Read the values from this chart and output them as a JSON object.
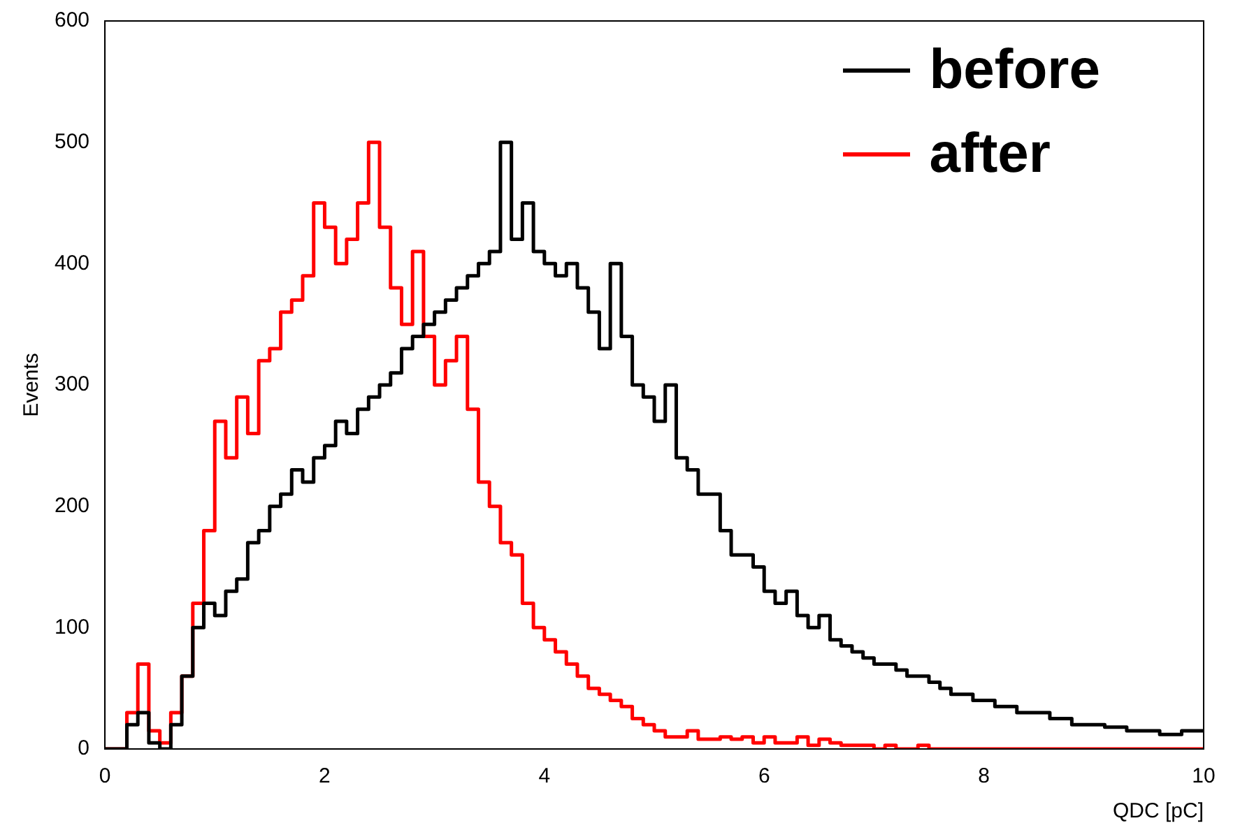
{
  "chart_data": {
    "type": "step",
    "xlabel": "QDC [pC]",
    "ylabel": "Events",
    "legend": "top right",
    "xlim": [
      0,
      10
    ],
    "ylim": [
      0,
      600
    ],
    "xticks": [
      0,
      2,
      4,
      6,
      8,
      10
    ],
    "yticks": [
      0,
      100,
      200,
      300,
      400,
      500,
      600
    ],
    "x": [
      0,
      0.1,
      0.2,
      0.3,
      0.4,
      0.5,
      0.6,
      0.7,
      0.8,
      0.9,
      1,
      1.1,
      1.2,
      1.3,
      1.4,
      1.5,
      1.6,
      1.7,
      1.8,
      1.9,
      2,
      2.1,
      2.2,
      2.3,
      2.4,
      2.5,
      2.6,
      2.7,
      2.8,
      2.9,
      3,
      3.1,
      3.2,
      3.3,
      3.4,
      3.5,
      3.6,
      3.7,
      3.8,
      3.9,
      4,
      4.1,
      4.2,
      4.3,
      4.4,
      4.5,
      4.6,
      4.7,
      4.8,
      4.9,
      5,
      5.1,
      5.2,
      5.3,
      5.4,
      5.5,
      5.6,
      5.7,
      5.8,
      5.9,
      6,
      6.1,
      6.2,
      6.3,
      6.4,
      6.5,
      6.6,
      6.7,
      6.8,
      6.9,
      7,
      7.1,
      7.2,
      7.3,
      7.4,
      7.5,
      7.6,
      7.7,
      7.8,
      7.9,
      8,
      8.1,
      8.2,
      8.3,
      8.4,
      8.5,
      8.6,
      8.7,
      8.8,
      8.9,
      9,
      9.1,
      9.2,
      9.3,
      9.4,
      9.5,
      9.6,
      9.7,
      9.8,
      9.9,
      10
    ],
    "series": [
      {
        "name": "before",
        "color": "#000000",
        "values": [
          0,
          0,
          0,
          20,
          30,
          5,
          0,
          20,
          60,
          100,
          120,
          110,
          130,
          140,
          170,
          180,
          200,
          210,
          230,
          220,
          240,
          250,
          270,
          260,
          280,
          290,
          300,
          310,
          330,
          340,
          350,
          360,
          370,
          380,
          390,
          400,
          410,
          500,
          420,
          450,
          410,
          400,
          390,
          400,
          380,
          360,
          330,
          400,
          340,
          300,
          290,
          270,
          300,
          240,
          230,
          210,
          210,
          180,
          160,
          160,
          150,
          130,
          120,
          130,
          110,
          100,
          110,
          90,
          85,
          80,
          75,
          70,
          70,
          65,
          60,
          60,
          55,
          50,
          45,
          45,
          40,
          40,
          35,
          35,
          30,
          30,
          30,
          25,
          25,
          20,
          20,
          20,
          18,
          18,
          15,
          15,
          15,
          12,
          12,
          15,
          15
        ]
      },
      {
        "name": "after",
        "color": "#ff0000",
        "values": [
          0,
          0,
          0,
          30,
          70,
          15,
          5,
          30,
          60,
          120,
          180,
          270,
          240,
          290,
          260,
          320,
          330,
          360,
          370,
          390,
          450,
          430,
          400,
          420,
          450,
          500,
          430,
          380,
          350,
          410,
          340,
          300,
          320,
          340,
          280,
          220,
          200,
          170,
          160,
          120,
          100,
          90,
          80,
          70,
          60,
          50,
          45,
          40,
          35,
          25,
          20,
          15,
          10,
          10,
          15,
          8,
          8,
          10,
          8,
          10,
          5,
          10,
          5,
          5,
          10,
          3,
          8,
          5,
          3,
          3,
          3,
          0,
          3,
          0,
          0,
          3,
          0,
          0,
          0,
          0,
          0,
          0,
          0,
          0,
          0,
          0,
          0,
          0,
          0,
          0,
          0,
          0,
          0,
          0,
          0,
          0,
          0,
          0,
          0,
          0,
          0
        ]
      }
    ]
  }
}
